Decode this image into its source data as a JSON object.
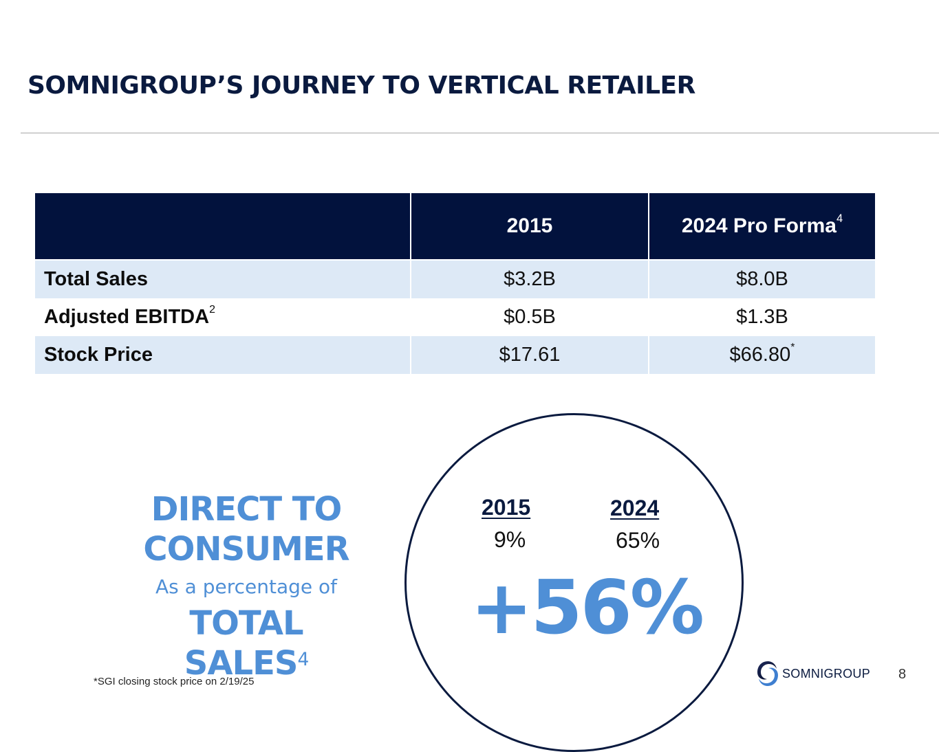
{
  "slide": {
    "title": "SOMNIGROUP’S JOURNEY TO VERTICAL RETAILER",
    "page_number": "8"
  },
  "table": {
    "header": {
      "col0": "",
      "col1": "2015",
      "col2": "2024 Pro Forma",
      "col2_sup": "4"
    },
    "rows": [
      {
        "label": "Total Sales",
        "label_sup": "",
        "v2015": "$3.2B",
        "v2024": "$8.0B",
        "v2024_sup": ""
      },
      {
        "label": "Adjusted EBITDA",
        "label_sup": "2",
        "v2015": "$0.5B",
        "v2024": "$1.3B",
        "v2024_sup": ""
      },
      {
        "label": "Stock Price",
        "label_sup": "",
        "v2015": "$17.61",
        "v2024": "$66.80",
        "v2024_sup": "*"
      }
    ]
  },
  "dtc": {
    "line1": "DIRECT TO",
    "line2": "CONSUMER",
    "line3": "As a percentage of",
    "line4": "TOTAL SALES",
    "line4_sup": "4"
  },
  "circle": {
    "year_a": "2015",
    "pct_a": "9%",
    "year_b": "2024",
    "pct_b": "65%",
    "change": "+56%"
  },
  "footnote": "*SGI closing stock price on 2/19/25",
  "logo": {
    "name": "SOMNIGROUP"
  },
  "colors": {
    "navy": "#02123d",
    "accent_blue": "#4f8fd6",
    "row_shade": "#dde9f6"
  }
}
